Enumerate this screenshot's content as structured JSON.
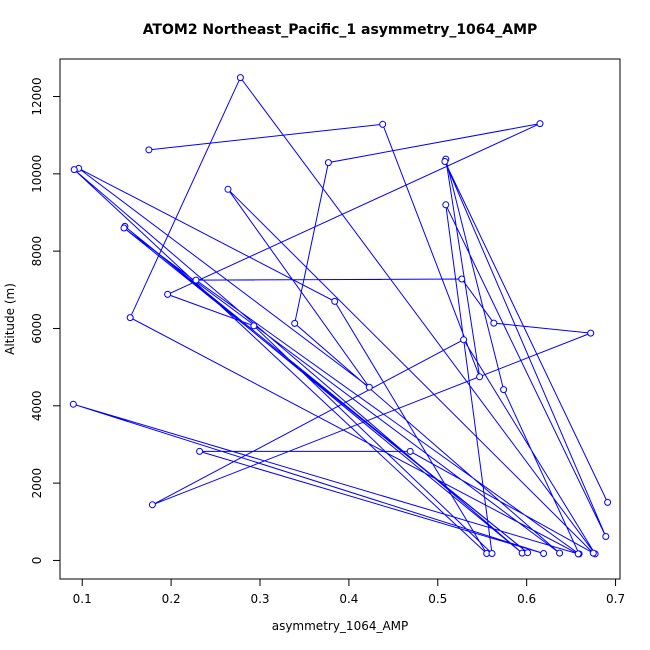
{
  "chart_data": {
    "type": "line",
    "title": "ATOM2 Northeast_Pacific_1 asymmetry_1064_AMP",
    "xlabel": "asymmetry_1064_AMP",
    "ylabel": "Altitude (m)",
    "xlim": [
      0.075,
      0.705
    ],
    "ylim": [
      -480,
      12970
    ],
    "xticks": [
      0.1,
      0.2,
      0.3,
      0.4,
      0.5,
      0.6,
      0.7
    ],
    "xtick_labels": [
      "0.1",
      "0.2",
      "0.3",
      "0.4",
      "0.5",
      "0.6",
      "0.7"
    ],
    "yticks": [
      0,
      2000,
      4000,
      6000,
      8000,
      10000,
      12000
    ],
    "ytick_labels": [
      "0",
      "2000",
      "4000",
      "6000",
      "8000",
      "10000",
      "12000"
    ],
    "grid": false,
    "series_color": "#0000ff",
    "series": [
      {
        "x": [
          0.175,
          0.438,
          0.547,
          0.509,
          0.574,
          0.659,
          0.228,
          0.527,
          0.563,
          0.672,
          0.179,
          0.529,
          0.677,
          0.278,
          0.154,
          0.658,
          0.09,
          0.619,
          0.232,
          0.469,
          0.675,
          0.264,
          0.423,
          0.096,
          0.384,
          0.555,
          0.091,
          0.595,
          0.148,
          0.601,
          0.147,
          0.637,
          0.339,
          0.377,
          0.615,
          0.196,
          0.293,
          0.561,
          0.509,
          0.689,
          0.508,
          0.691
        ],
        "y": [
          10620,
          11280,
          4750,
          10380,
          4420,
          170,
          7250,
          7280,
          6140,
          5880,
          1440,
          5710,
          170,
          12490,
          6280,
          170,
          4040,
          180,
          2820,
          2820,
          190,
          9600,
          4480,
          10140,
          6700,
          180,
          10110,
          190,
          8640,
          200,
          8600,
          190,
          6130,
          10290,
          11300,
          6880,
          6070,
          180,
          9200,
          620,
          10320,
          1500
        ]
      }
    ]
  }
}
